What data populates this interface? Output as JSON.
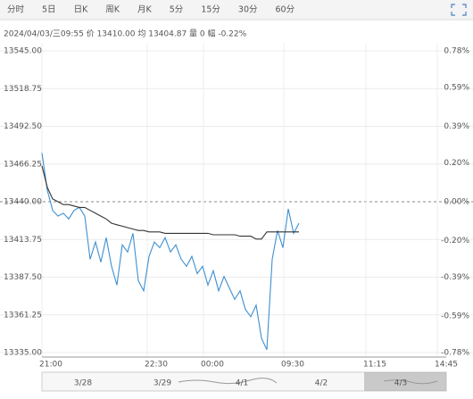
{
  "tabs": [
    "分时",
    "5日",
    "日K",
    "周K",
    "月K",
    "5分",
    "15分",
    "30分",
    "60分"
  ],
  "info": "2024/04/03/三09:55  价 13410.00  均 13404.87  量 0  幅 -0.22%",
  "navigator": {
    "labels": [
      "3/28",
      "3/29",
      "4/1",
      "4/2",
      "4/3"
    ]
  },
  "chart_data": {
    "type": "line",
    "x": [
      0,
      6,
      12,
      18,
      24,
      30,
      36,
      42,
      48,
      54,
      60,
      66,
      72,
      78,
      84,
      90,
      96,
      102,
      108,
      114,
      120,
      126,
      132,
      138,
      144,
      150,
      156,
      162,
      168,
      174,
      180,
      186,
      192,
      198,
      204,
      210,
      216,
      222,
      228,
      234,
      240,
      246,
      252,
      258,
      264,
      270,
      276,
      282,
      288
    ],
    "series": [
      {
        "color": "#3d8fd1",
        "values": [
          13474,
          13448,
          13434,
          13430,
          13432,
          13428,
          13434,
          13436,
          13430,
          13400,
          13412,
          13398,
          13415,
          13395,
          13382,
          13410,
          13405,
          13418,
          13385,
          13378,
          13402,
          13412,
          13408,
          13415,
          13405,
          13410,
          13400,
          13395,
          13402,
          13390,
          13395,
          13382,
          13392,
          13378,
          13388,
          13380,
          13372,
          13378,
          13365,
          13360,
          13368,
          13345,
          13337,
          13400,
          13420,
          13408,
          13435,
          13418,
          13425
        ]
      },
      {
        "color": "#333333",
        "values": [
          13465,
          13450,
          13442,
          13440,
          13438,
          13438,
          13437,
          13436,
          13436,
          13434,
          13432,
          13430,
          13428,
          13425,
          13424,
          13423,
          13422,
          13421,
          13420,
          13420,
          13419,
          13419,
          13419,
          13418,
          13418,
          13418,
          13418,
          13418,
          13418,
          13418,
          13418,
          13418,
          13417,
          13417,
          13417,
          13417,
          13417,
          13416,
          13416,
          13416,
          13414,
          13414,
          13419,
          13419,
          13419,
          13419,
          13419,
          13419,
          13419
        ]
      }
    ],
    "xlim": [
      0,
      453
    ],
    "xticks": [
      {
        "value": 0,
        "label": "21:00"
      },
      {
        "value": 118,
        "label": "22:30"
      },
      {
        "value": 181,
        "label": "00:00"
      },
      {
        "value": 271,
        "label": "09:30"
      },
      {
        "value": 363,
        "label": "11:15"
      },
      {
        "value": 443,
        "label": "14:45"
      }
    ],
    "ylim": [
      13335,
      13545
    ],
    "yticks": [
      {
        "value": 13545,
        "label": "13545.00"
      },
      {
        "value": 13518.75,
        "label": "13518.75"
      },
      {
        "value": 13492.5,
        "label": "13492.50"
      },
      {
        "value": 13466.25,
        "label": "13466.25"
      },
      {
        "value": 13440,
        "label": "13440.00"
      },
      {
        "value": 13413.75,
        "label": "13413.75"
      },
      {
        "value": 13387.5,
        "label": "13387.50"
      },
      {
        "value": 13361.25,
        "label": "13361.25"
      },
      {
        "value": 13335,
        "label": "13335.00"
      }
    ],
    "y2lim": [
      -0.78,
      0.78
    ],
    "y2ticks": [
      {
        "value": 0.78,
        "label": "0.78%"
      },
      {
        "value": 0.59,
        "label": "0.59%"
      },
      {
        "value": 0.39,
        "label": "0.39%"
      },
      {
        "value": 0.2,
        "label": "0.20%"
      },
      {
        "value": 0,
        "label": "0.00%"
      },
      {
        "value": -0.2,
        "label": "-0.20%"
      },
      {
        "value": -0.39,
        "label": "-0.39%"
      },
      {
        "value": -0.59,
        "label": "-0.59%"
      },
      {
        "value": -0.78,
        "label": "-0.78%"
      }
    ],
    "grid": true
  }
}
